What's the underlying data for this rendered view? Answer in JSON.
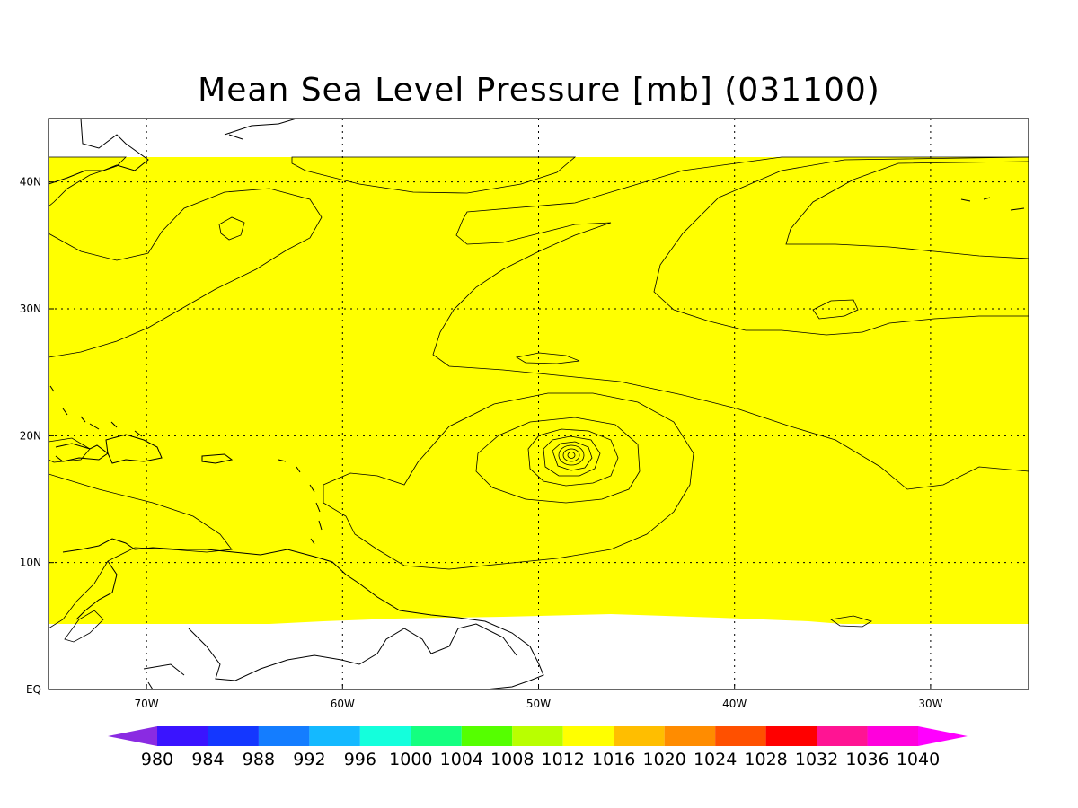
{
  "title": "Mean Sea Level Pressure [mb] (031100)",
  "map": {
    "lon_range": [
      -75,
      -25
    ],
    "lat_range": [
      0,
      45
    ],
    "data_lat_range": [
      4,
      42
    ],
    "grid": true,
    "lat_ticks": [
      {
        "value": 0,
        "label": "EQ"
      },
      {
        "value": 10,
        "label": "10N"
      },
      {
        "value": 20,
        "label": "20N"
      },
      {
        "value": 30,
        "label": "30N"
      },
      {
        "value": 40,
        "label": "40N"
      }
    ],
    "lon_ticks": [
      {
        "value": -70,
        "label": "70W"
      },
      {
        "value": -60,
        "label": "60W"
      },
      {
        "value": -50,
        "label": "50W"
      },
      {
        "value": -40,
        "label": "40W"
      },
      {
        "value": -30,
        "label": "30W"
      }
    ],
    "storm_center": {
      "lon": -48.5,
      "lat": 18.5
    }
  },
  "colorbar": {
    "labels": [
      "980",
      "984",
      "988",
      "992",
      "996",
      "1000",
      "1004",
      "1008",
      "1012",
      "1016",
      "1020",
      "1024",
      "1028",
      "1032",
      "1036",
      "1040"
    ],
    "colors": [
      "#8a2be2",
      "#3a14ff",
      "#1437ff",
      "#147dff",
      "#14b9ff",
      "#14ffdc",
      "#14ff80",
      "#55ff00",
      "#b9ff00",
      "#ffff00",
      "#ffbe00",
      "#ff8c00",
      "#ff5000",
      "#ff0000",
      "#ff1493",
      "#ff00dc",
      "#ff00ff"
    ]
  }
}
